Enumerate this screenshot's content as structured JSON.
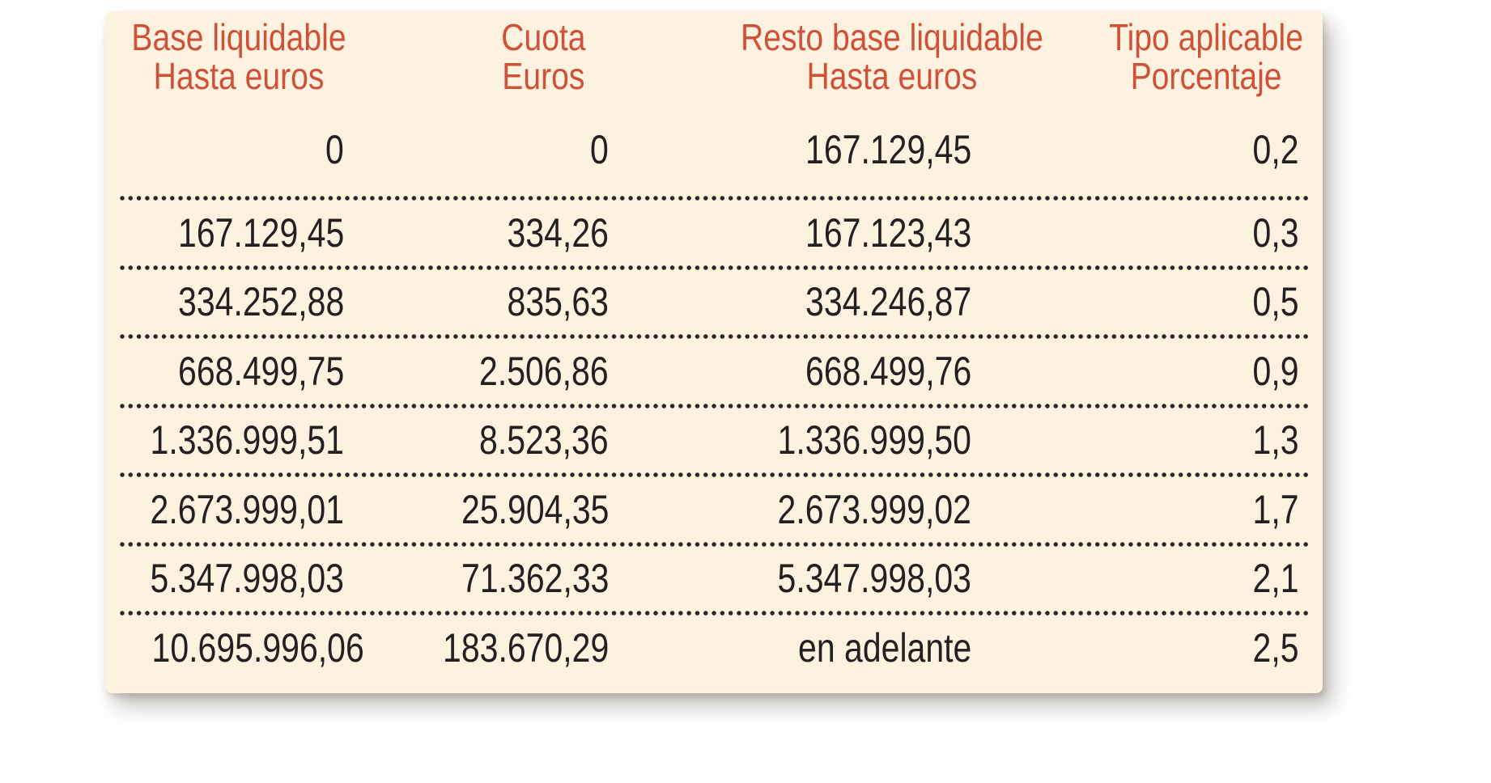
{
  "table": {
    "columns": [
      {
        "line1": "Base liquidable",
        "line2": "Hasta euros"
      },
      {
        "line1": "Cuota",
        "line2": "Euros"
      },
      {
        "line1": "Resto base liquidable",
        "line2": "Hasta euros"
      },
      {
        "line1": "Tipo aplicable",
        "line2": "Porcentaje"
      }
    ],
    "rows": [
      [
        "0",
        "0",
        "167.129,45",
        "0,2"
      ],
      [
        "167.129,45",
        "334,26",
        "167.123,43",
        "0,3"
      ],
      [
        "334.252,88",
        "835,63",
        "334.246,87",
        "0,5"
      ],
      [
        "668.499,75",
        "2.506,86",
        "668.499,76",
        "0,9"
      ],
      [
        "1.336.999,51",
        "8.523,36",
        "1.336.999,50",
        "1,3"
      ],
      [
        "2.673.999,01",
        "25.904,35",
        "2.673.999,02",
        "1,7"
      ],
      [
        "5.347.998,03",
        "71.362,33",
        "5.347.998,03",
        "2,1"
      ],
      [
        "10.695.996,06",
        "183.670,29",
        "en adelante",
        "2,5"
      ]
    ]
  },
  "colors": {
    "panel_background": "#fcf2df",
    "header_text": "#cf5138",
    "body_text": "#242022",
    "separator_dots": "#2a2526",
    "page_background": "#ffffff"
  }
}
